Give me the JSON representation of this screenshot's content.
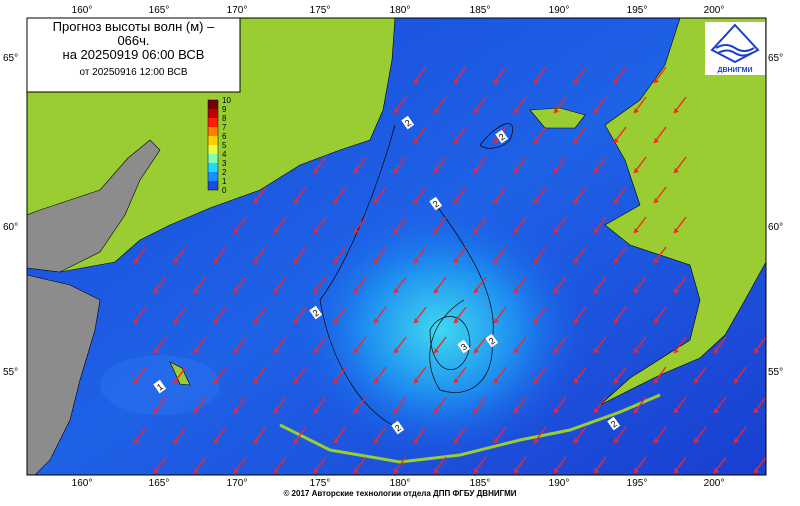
{
  "header": {
    "title": "Прогноз высоты волн (м) – 066ч.",
    "valid": "на 20250919 06:00 ВСВ",
    "issued": "от 20250916 12:00 ВСВ"
  },
  "logo": "ДВНИГМИ",
  "colorbar": {
    "labels": [
      "10",
      "9",
      "8",
      "7",
      "6",
      "5",
      "4",
      "3",
      "2",
      "1",
      "0"
    ]
  },
  "lon_labels": [
    "160°",
    "165°",
    "170°",
    "175°",
    "180°",
    "185°",
    "190°",
    "195°",
    "200°"
  ],
  "lat_labels": [
    "65°",
    "60°",
    "55°"
  ],
  "contour_labels": [
    "2",
    "2",
    "2",
    "2",
    "3",
    "2",
    "1",
    "2",
    "2"
  ],
  "footer": "© 2017 Авторские технологии отдела ДПП ФГБУ ДВНИГМИ"
}
